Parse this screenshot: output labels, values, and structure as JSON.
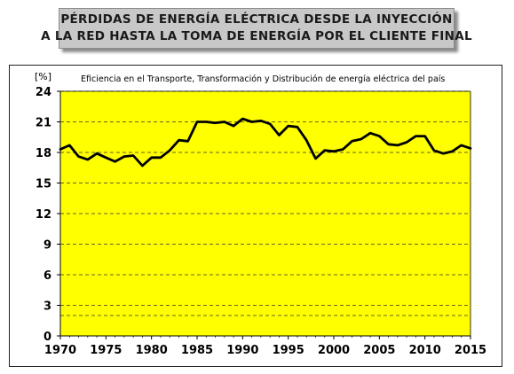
{
  "title": {
    "line1": "PÉRDIDAS DE ENERGÍA ELÉCTRICA DESDE LA INYECCIÓN",
    "line2": "A LA RED HASTA LA TOMA DE ENERGÍA POR EL CLIENTE FINAL"
  },
  "chart_data": {
    "type": "line",
    "title": "Eficiencia en el Transporte, Transformación y Distribución de energía eléctrica del país",
    "ylabel": "[%]",
    "xlabel": "",
    "xlim": [
      1970,
      2015
    ],
    "ylim": [
      0,
      24
    ],
    "x_ticks": [
      "1970",
      "1975",
      "1980",
      "1985",
      "1990",
      "1995",
      "2000",
      "2005",
      "2010",
      "2015"
    ],
    "y_ticks": [
      "0",
      "3",
      "6",
      "9",
      "12",
      "15",
      "18",
      "21",
      "24"
    ],
    "grid": true,
    "legend": "none",
    "plot_background": "#ffff00",
    "line_color": "#000000",
    "series": [
      {
        "x": [
          1970,
          1971,
          1972,
          1973,
          1974,
          1975,
          1976,
          1977,
          1978,
          1979,
          1980,
          1981,
          1982,
          1983,
          1984,
          1985,
          1986,
          1987,
          1988,
          1989,
          1990,
          1991,
          1992,
          1993,
          1994,
          1995,
          1996,
          1997,
          1998,
          1999,
          2000,
          2001,
          2002,
          2003,
          2004,
          2005,
          2006,
          2007,
          2008,
          2009,
          2010,
          2011,
          2012,
          2013,
          2014,
          2015
        ],
        "values": [
          18.3,
          18.7,
          17.6,
          17.3,
          17.9,
          17.5,
          17.1,
          17.6,
          17.7,
          16.7,
          17.5,
          17.5,
          18.2,
          19.2,
          19.1,
          21.0,
          21.0,
          20.9,
          21.0,
          20.6,
          21.3,
          21.0,
          21.1,
          20.8,
          19.7,
          20.6,
          20.5,
          19.2,
          17.4,
          18.2,
          18.1,
          18.3,
          19.1,
          19.3,
          19.9,
          19.6,
          18.8,
          18.7,
          19.0,
          19.6,
          19.6,
          18.2,
          17.9,
          18.1,
          18.7,
          18.4
        ]
      }
    ]
  }
}
